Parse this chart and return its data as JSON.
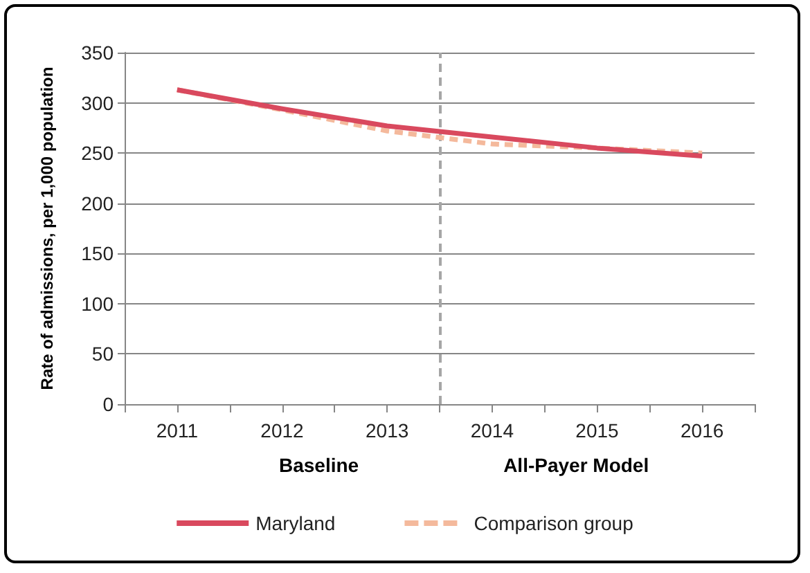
{
  "chart_data": {
    "type": "line",
    "ylabel": "Rate of admissions, per 1,000 population",
    "x": [
      2011,
      2012,
      2013,
      2014,
      2015,
      2016
    ],
    "xlim": [
      2010.5,
      2016.5
    ],
    "xticks": [
      {
        "value": 2010.5,
        "label": null
      },
      2011,
      {
        "value": 2011.5,
        "label": null
      },
      2012,
      {
        "value": 2012.5,
        "label": null
      },
      2013,
      {
        "value": 2013.5,
        "label": null
      },
      2014,
      {
        "value": 2014.5,
        "label": null
      },
      2015,
      {
        "value": 2015.5,
        "label": null
      },
      2016,
      {
        "value": 2016.5,
        "label": null
      }
    ],
    "ylim": [
      0,
      350
    ],
    "yticks": [
      0,
      50,
      100,
      150,
      200,
      250,
      300,
      350
    ],
    "series": [
      {
        "name": "Maryland",
        "color": "#d9495e",
        "line_style": "solid",
        "values": [
          313,
          294,
          277,
          266,
          255,
          247
        ]
      },
      {
        "name": "Comparison group",
        "color": "#f4b99c",
        "line_style": "dashed",
        "values": [
          313,
          293,
          272,
          259,
          255,
          250
        ]
      }
    ],
    "ref_lines": [
      {
        "axis": "x",
        "value": 2013.5,
        "color": "#a6a6a6",
        "line_style": "dashed"
      }
    ],
    "annotations": [
      "Baseline",
      "All-Payer Model"
    ],
    "grid": "y",
    "legend": "bottom",
    "marker": "none"
  }
}
